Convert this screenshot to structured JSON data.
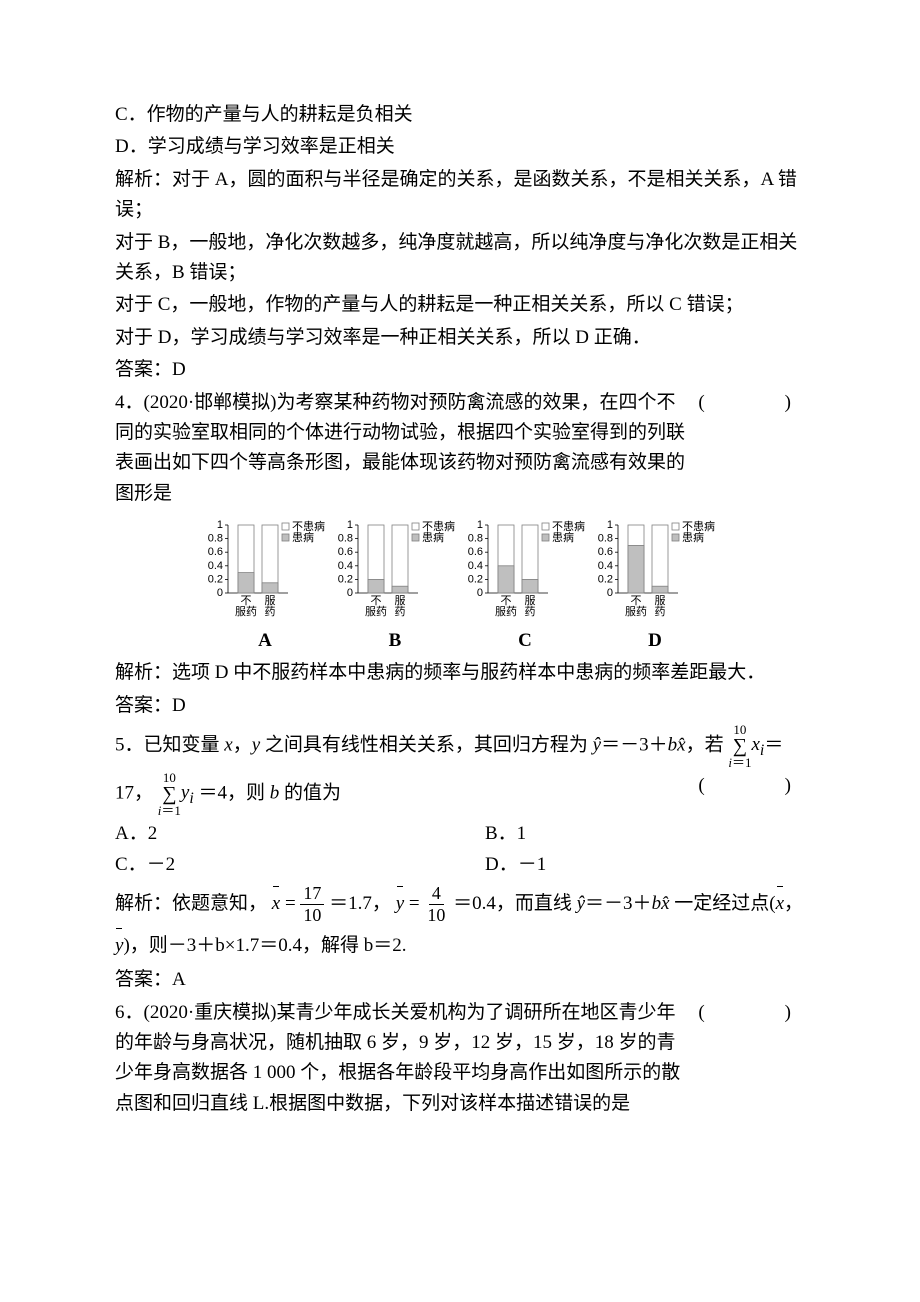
{
  "q3": {
    "optC": "C．作物的产量与人的耕耘是负相关",
    "optD": "D．学习成绩与学习效率是正相关",
    "sol1": "解析：对于 A，圆的面积与半径是确定的关系，是函数关系，不是相关关系，A 错误；",
    "sol2": "对于 B，一般地，净化次数越多，纯净度就越高，所以纯净度与净化次数是正相关关系，B 错误；",
    "sol3": "对于 C，一般地，作物的产量与人的耕耘是一种正相关关系，所以 C 错误；",
    "sol4": "对于 D，学习成绩与学习效率是一种正相关关系，所以 D 正确．",
    "ans": "答案：D"
  },
  "q4": {
    "stem1": "4．(2020·邯郸模拟)为考察某种药物对预防禽流感的效果，在四个不同的实验室取相同的个体进行动物试验，根据四个实验室得到的列联表画出如下四个等高条形图，最能体现该药物对预防禽流感有效果的图形是",
    "paren": "(　　)",
    "charts": {
      "yticks": [
        "1",
        "0.8",
        "0.6",
        "0.4",
        "0.2",
        "0"
      ],
      "legend": {
        "top": "不患病",
        "bottom": "患病"
      },
      "xlabels": {
        "left": "不\n服药",
        "right": "服\n药"
      },
      "panels": [
        {
          "label": "A",
          "left_fill": 0.3,
          "right_fill": 0.15
        },
        {
          "label": "B",
          "left_fill": 0.2,
          "right_fill": 0.1
        },
        {
          "label": "C",
          "left_fill": 0.4,
          "right_fill": 0.2
        },
        {
          "label": "D",
          "left_fill": 0.7,
          "right_fill": 0.1
        }
      ],
      "bar_fill_color": "#bfbfbf",
      "bar_border_color": "#808080"
    },
    "sol": "解析：选项 D 中不服药样本中患病的频率与服药样本中患病的频率差距最大．",
    "ans": "答案：D"
  },
  "q5": {
    "stem_pre": "5．已知变量 ",
    "stem_mid1": "，",
    "stem_mid2": " 之间具有线性相关关系，其回归方程为 ",
    "eq_seg": "ŷ＝－3＋bx̂",
    "stem_post1": "，若 ",
    "sum_top": "10",
    "sum_bot": "i＝1",
    "xi": "xᵢ",
    "yi": "yᵢ",
    "eq17": "＝",
    "line2a": "17，",
    "line2b": "＝4，则 ",
    "line2c": " 的值为",
    "paren": "(　　)",
    "optA": "A．2",
    "optB": "B．1",
    "optC": "C．－2",
    "optD": "D．－1",
    "sol_pre": "解析：依题意知，",
    "sol_mid1": "＝1.7，",
    "sol_mid2": "＝0.4，而直线 ",
    "sol_mid3": "＝－3＋",
    "sol_mid4": " 一定经过点(",
    "sol_line2": ")，则－3＋b×1.7＝0.4，解得 b＝2.",
    "ans": "答案：A",
    "frac17": "17",
    "frac10": "10",
    "frac4": "4"
  },
  "q6": {
    "stem": "6．(2020·重庆模拟)某青少年成长关爱机构为了调研所在地区青少年的年龄与身高状况，随机抽取 6 岁，9 岁，12 岁，15 岁，18 岁的青少年身高数据各 1 000 个，根据各年龄段平均身高作出如图所示的散点图和回归直线 L.根据图中数据，下列对该样本描述错误的是",
    "paren": "(　　)"
  }
}
